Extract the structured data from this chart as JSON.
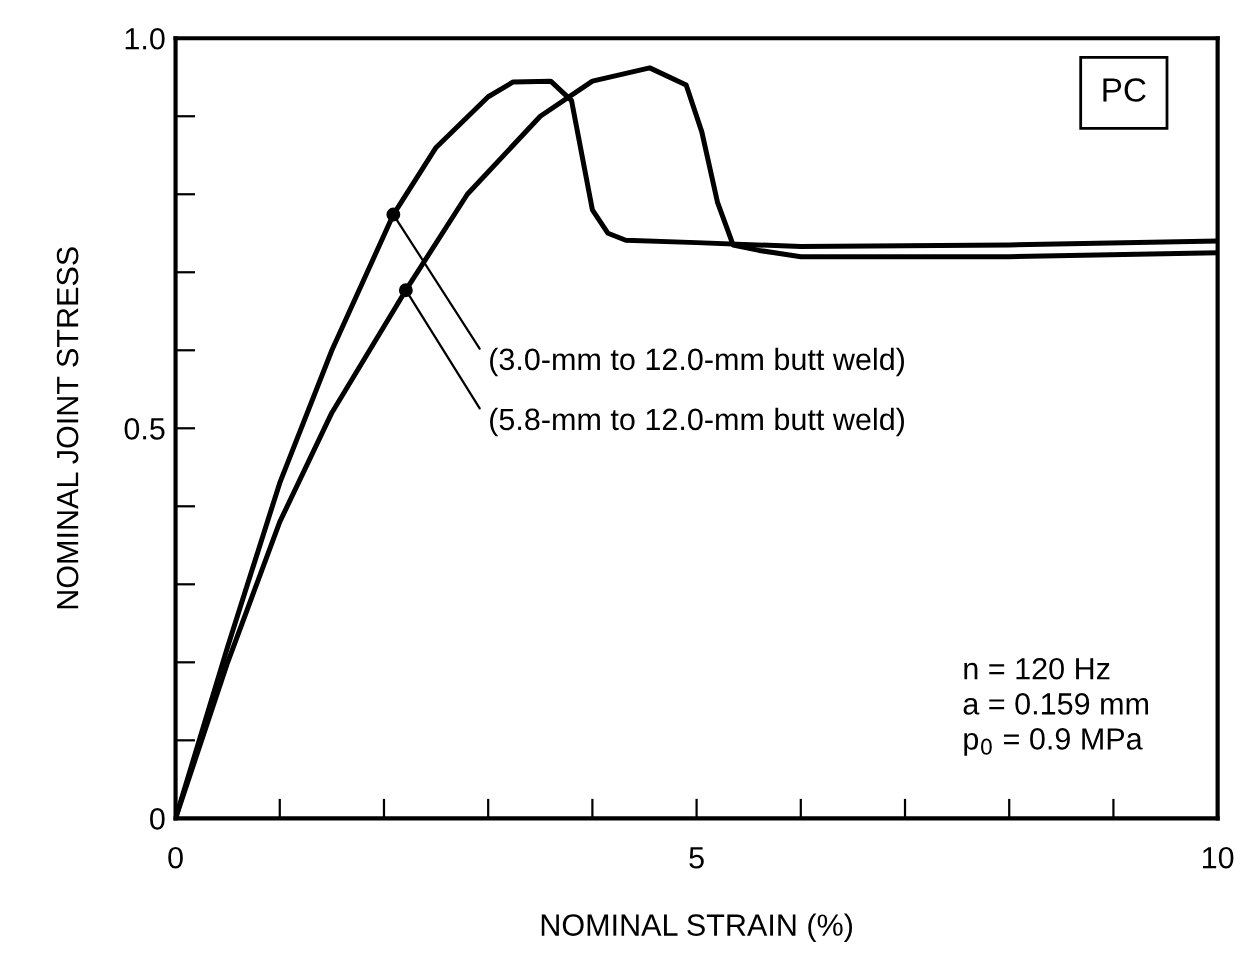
{
  "chart_data": {
    "type": "line",
    "xlabel": "NOMINAL STRAIN (%)",
    "ylabel": "NOMINAL JOINT STRESS",
    "xlim": [
      0,
      10
    ],
    "ylim": [
      0,
      1.0
    ],
    "xticks": [
      0,
      {
        "value": 1,
        "label": null
      },
      {
        "value": 2,
        "label": null
      },
      {
        "value": 3,
        "label": null
      },
      {
        "value": 4,
        "label": null
      },
      5,
      {
        "value": 6,
        "label": null
      },
      {
        "value": 7,
        "label": null
      },
      {
        "value": 8,
        "label": null
      },
      {
        "value": 9,
        "label": null
      },
      10
    ],
    "yticks": [
      0,
      {
        "value": 0.1,
        "label": null
      },
      {
        "value": 0.2,
        "label": null
      },
      {
        "value": 0.3,
        "label": null
      },
      {
        "value": 0.4,
        "label": null
      },
      0.5,
      {
        "value": 0.6,
        "label": null
      },
      {
        "value": 0.7,
        "label": null
      },
      {
        "value": 0.8,
        "label": null
      },
      {
        "value": 0.9,
        "label": null
      },
      {
        "value": 1.0,
        "label": "1.0"
      }
    ],
    "grid": false,
    "legend": false,
    "marker": "none",
    "line_style": "solid",
    "series": [
      {
        "color": "#000000",
        "x": [
          0,
          0.5,
          1,
          1.5,
          2.09,
          2.5,
          3,
          3.24,
          3.6,
          3.8,
          3.9,
          4.0,
          4.15,
          4.32,
          5,
          6,
          8,
          10
        ],
        "values": [
          0,
          0.22,
          0.43,
          0.6,
          0.774,
          0.86,
          0.925,
          0.944,
          0.945,
          0.92,
          0.85,
          0.78,
          0.75,
          0.741,
          0.738,
          0.733,
          0.735,
          0.74
        ]
      },
      {
        "color": "#000000",
        "x": [
          0,
          0.5,
          1,
          1.5,
          2.21,
          2.8,
          3.5,
          4,
          4.55,
          4.9,
          5.05,
          5.2,
          5.35,
          5.6,
          6,
          8,
          10
        ],
        "values": [
          0,
          0.2,
          0.38,
          0.52,
          0.677,
          0.8,
          0.9,
          0.945,
          0.962,
          0.94,
          0.88,
          0.79,
          0.735,
          0.728,
          0.72,
          0.72,
          0.725
        ]
      }
    ],
    "annotations": [
      {
        "text": "(3.0-mm to 12.0-mm butt weld)",
        "x": 2.09,
        "y": 0.774
      },
      {
        "text": "(5.8-mm to 12.0-mm butt weld)",
        "x": 2.21,
        "y": 0.677
      },
      "PC",
      "n = 120 Hz\na = 0.159 mm\np$_{0}$ = 0.9 MPa"
    ]
  }
}
